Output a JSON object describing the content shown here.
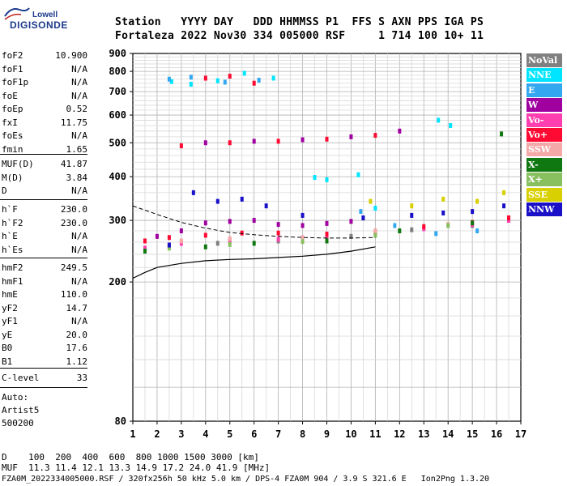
{
  "logo": {
    "brand": "Lowell",
    "name": "DIGISONDE"
  },
  "header": {
    "line1": "Station   YYYY DAY   DDD HHMMSS P1  FFS S AXN PPS IGA PS",
    "line2": "Fortaleza 2022 Nov30 334 005000 RSF     1 714 100 10+ 11"
  },
  "params": {
    "group1": [
      {
        "k": "foF2",
        "v": "10.900"
      },
      {
        "k": "foF1",
        "v": "N/A"
      },
      {
        "k": "foF1p",
        "v": "N/A"
      },
      {
        "k": "foE",
        "v": "N/A"
      },
      {
        "k": "foEp",
        "v": "0.52"
      },
      {
        "k": "fxI",
        "v": "11.75"
      },
      {
        "k": "foEs",
        "v": "N/A"
      },
      {
        "k": "fmin",
        "v": "1.65"
      }
    ],
    "group2": [
      {
        "k": "MUF(D)",
        "v": "41.87"
      },
      {
        "k": "M(D)",
        "v": "3.84"
      },
      {
        "k": "D",
        "v": "N/A"
      }
    ],
    "group3": [
      {
        "k": "h`F",
        "v": "230.0"
      },
      {
        "k": "h`F2",
        "v": "230.0"
      },
      {
        "k": "h`E",
        "v": "N/A"
      },
      {
        "k": "h`Es",
        "v": "N/A"
      }
    ],
    "group4": [
      {
        "k": "hmF2",
        "v": "249.5"
      },
      {
        "k": "hmF1",
        "v": "N/A"
      },
      {
        "k": "hmE",
        "v": "110.0"
      },
      {
        "k": "yF2",
        "v": "14.7"
      },
      {
        "k": "yF1",
        "v": "N/A"
      },
      {
        "k": "yE",
        "v": "20.0"
      },
      {
        "k": "B0",
        "v": "17.6"
      },
      {
        "k": "B1",
        "v": "1.12"
      }
    ],
    "clevel": {
      "k": "C-level",
      "v": "33"
    }
  },
  "auto": {
    "line1": "Auto:",
    "line2": "Artist5",
    "line3": "500200"
  },
  "footer": {
    "d_row": "D    100  200  400  600  800 1000 1500 3000 [km]",
    "muf_row": "MUF  11.3 11.4 12.1 13.3 14.9 17.2 24.0 41.9 [MHz]",
    "file_row": "FZA0M_2022334005000.RSF / 320fx256h 50 kHz 5.0 km / DPS-4 FZA0M 904 / 3.9 S 321.6 E   Ion2Png 1.3.20"
  },
  "legend": [
    {
      "label": "NoVal",
      "color": "#808080"
    },
    {
      "label": "NNE",
      "color": "#00e5ff"
    },
    {
      "label": "E",
      "color": "#33a8f0"
    },
    {
      "label": "W",
      "color": "#a000a0"
    },
    {
      "label": "Vo-",
      "color": "#ff3fb0"
    },
    {
      "label": "Vo+",
      "color": "#ff0a32"
    },
    {
      "label": "SSW",
      "color": "#f4a8a8"
    },
    {
      "label": "X-",
      "color": "#107810"
    },
    {
      "label": "X+",
      "color": "#88c060"
    },
    {
      "label": "SSE",
      "color": "#d8d000"
    },
    {
      "label": "NNW",
      "color": "#1a10c8"
    }
  ],
  "chart_data": {
    "type": "scatter",
    "xlim": [
      1,
      17
    ],
    "ylim": [
      80,
      900
    ],
    "x_ticks": [
      1,
      2,
      3,
      4,
      5,
      6,
      7,
      8,
      9,
      10,
      11,
      12,
      13,
      14,
      15,
      16,
      17
    ],
    "y_ticks": [
      80,
      200,
      300,
      400,
      500,
      600,
      700,
      800,
      900
    ],
    "grid": true,
    "y_scale": "log",
    "traces": [
      {
        "name": "NoVal",
        "points": [
          [
            2.5,
            255
          ],
          [
            4.5,
            258
          ],
          [
            7,
            262
          ],
          [
            10,
            270
          ],
          [
            12.5,
            282
          ],
          [
            15,
            290
          ]
        ]
      },
      {
        "name": "NNE",
        "points": [
          [
            2.6,
            748
          ],
          [
            3.4,
            735
          ],
          [
            4.5,
            752
          ],
          [
            5.6,
            790
          ],
          [
            6.8,
            765
          ],
          [
            8.5,
            398
          ],
          [
            9,
            392
          ],
          [
            10.3,
            405
          ],
          [
            11,
            325
          ],
          [
            13.6,
            580
          ],
          [
            14.1,
            560
          ]
        ]
      },
      {
        "name": "E",
        "points": [
          [
            2.5,
            760
          ],
          [
            3.4,
            770
          ],
          [
            4.8,
            745
          ],
          [
            6.2,
            755
          ],
          [
            10.4,
            318
          ],
          [
            11.8,
            290
          ],
          [
            13.5,
            275
          ],
          [
            15.2,
            280
          ]
        ]
      },
      {
        "name": "W",
        "points": [
          [
            2,
            270
          ],
          [
            3,
            280
          ],
          [
            4,
            295
          ],
          [
            5,
            298
          ],
          [
            6,
            300
          ],
          [
            7,
            292
          ],
          [
            8,
            290
          ],
          [
            9,
            294
          ],
          [
            10,
            298
          ],
          [
            4,
            500
          ],
          [
            6,
            505
          ],
          [
            8,
            510
          ],
          [
            10,
            520
          ],
          [
            12,
            540
          ]
        ]
      },
      {
        "name": "Vo-",
        "points": [
          [
            1.5,
            250
          ],
          [
            3,
            258
          ],
          [
            5,
            262
          ],
          [
            7,
            265
          ],
          [
            9,
            268
          ],
          [
            11,
            275
          ],
          [
            13,
            284
          ],
          [
            15,
            292
          ],
          [
            16.5,
            300
          ]
        ]
      },
      {
        "name": "Vo+",
        "points": [
          [
            1.5,
            262
          ],
          [
            2.5,
            268
          ],
          [
            4,
            272
          ],
          [
            5.5,
            276
          ],
          [
            7,
            276
          ],
          [
            9,
            274
          ],
          [
            11,
            278
          ],
          [
            13,
            288
          ],
          [
            15,
            296
          ],
          [
            16.5,
            305
          ],
          [
            4,
            765
          ],
          [
            5,
            775
          ],
          [
            6,
            740
          ],
          [
            3,
            490
          ],
          [
            5,
            500
          ],
          [
            7,
            505
          ],
          [
            9,
            512
          ],
          [
            11,
            525
          ]
        ]
      },
      {
        "name": "SSW",
        "points": [
          [
            3,
            262
          ],
          [
            5,
            266
          ],
          [
            8,
            268
          ],
          [
            11,
            280
          ],
          [
            14,
            292
          ]
        ]
      },
      {
        "name": "X-",
        "points": [
          [
            1.5,
            245
          ],
          [
            4,
            252
          ],
          [
            6,
            258
          ],
          [
            9,
            262
          ],
          [
            12,
            280
          ],
          [
            15,
            295
          ],
          [
            16.2,
            530
          ]
        ]
      },
      {
        "name": "X+",
        "points": [
          [
            2.5,
            250
          ],
          [
            5,
            256
          ],
          [
            8,
            261
          ],
          [
            11,
            272
          ],
          [
            14,
            290
          ]
        ]
      },
      {
        "name": "SSE",
        "points": [
          [
            10.8,
            340
          ],
          [
            12.5,
            330
          ],
          [
            13.8,
            345
          ],
          [
            15.2,
            340
          ],
          [
            16.3,
            360
          ]
        ]
      },
      {
        "name": "NNW",
        "points": [
          [
            2.5,
            255
          ],
          [
            3.5,
            360
          ],
          [
            4.5,
            340
          ],
          [
            5.5,
            345
          ],
          [
            6.5,
            330
          ],
          [
            8,
            310
          ],
          [
            10.5,
            305
          ],
          [
            12.5,
            310
          ],
          [
            13.8,
            315
          ],
          [
            15,
            318
          ],
          [
            16.3,
            330
          ]
        ]
      }
    ],
    "dashed_curve": [
      [
        1,
        330
      ],
      [
        2,
        312
      ],
      [
        3,
        296
      ],
      [
        4,
        285
      ],
      [
        5,
        277
      ],
      [
        6,
        273
      ],
      [
        7,
        270
      ],
      [
        8,
        268
      ],
      [
        9,
        267
      ],
      [
        10,
        267
      ],
      [
        11,
        268
      ]
    ],
    "solid_curve": [
      [
        1,
        205
      ],
      [
        1.5,
        213
      ],
      [
        2,
        220
      ],
      [
        3,
        226
      ],
      [
        4,
        230
      ],
      [
        5,
        232
      ],
      [
        6,
        233
      ],
      [
        7,
        235
      ],
      [
        8,
        237
      ],
      [
        9,
        240
      ],
      [
        10,
        245
      ],
      [
        11,
        252
      ]
    ]
  }
}
